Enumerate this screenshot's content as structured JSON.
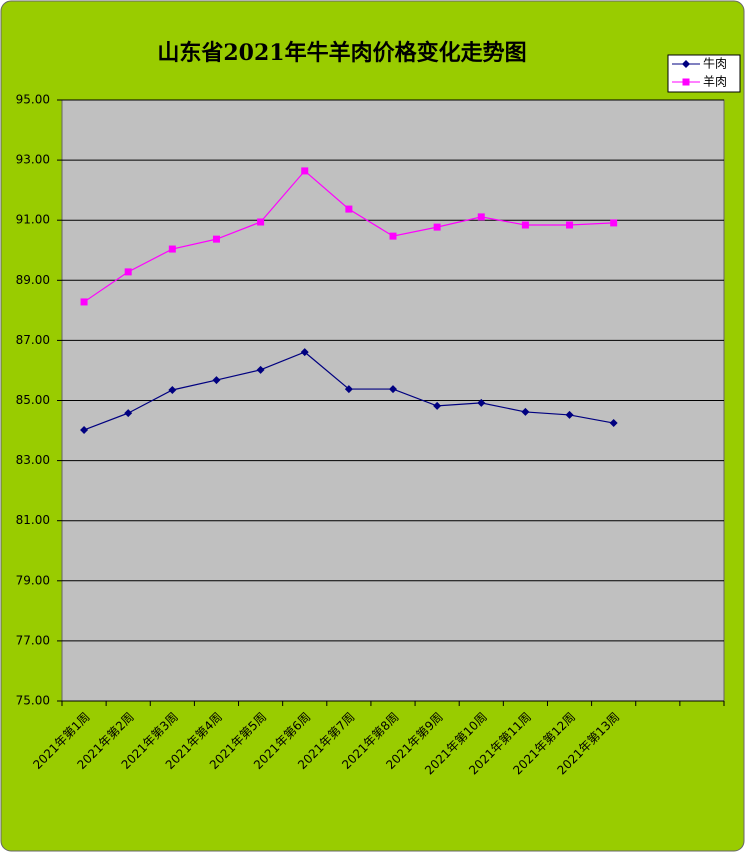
{
  "chart_data": {
    "type": "line",
    "title": "山东省2021年牛羊肉价格变化走势图",
    "categories": [
      "2021年第1周",
      "2021年第2周",
      "2021年第3周",
      "2021年第4周",
      "2021年第5周",
      "2021年第6周",
      "2021年第7周",
      "2021年第8周",
      "2021年第9周",
      "2021年第10周",
      "2021年第11周",
      "2021年第12周",
      "2021年第13周",
      null,
      null
    ],
    "series": [
      {
        "name": "牛肉",
        "color": "#000080",
        "marker": "diamond",
        "values": [
          84.02,
          84.58,
          85.35,
          85.68,
          86.02,
          86.61,
          85.38,
          85.38,
          84.82,
          84.92,
          84.62,
          84.52,
          84.25,
          null,
          null
        ]
      },
      {
        "name": "羊肉",
        "color": "#ff00ff",
        "marker": "square",
        "values": [
          88.28,
          89.28,
          90.04,
          90.37,
          90.94,
          92.64,
          91.37,
          90.47,
          90.77,
          91.11,
          90.84,
          90.84,
          90.91,
          null,
          null
        ]
      }
    ],
    "ylim": [
      75,
      95
    ],
    "yticks": [
      {
        "value": 75,
        "label": "75.00"
      },
      {
        "value": 77,
        "label": "77.00"
      },
      {
        "value": 79,
        "label": "79.00"
      },
      {
        "value": 81,
        "label": "81.00"
      },
      {
        "value": 83,
        "label": "83.00"
      },
      {
        "value": 85,
        "label": "85.00"
      },
      {
        "value": 87,
        "label": "87.00"
      },
      {
        "value": 89,
        "label": "89.00"
      },
      {
        "value": 91,
        "label": "91.00"
      },
      {
        "value": 93,
        "label": "93.00"
      },
      {
        "value": 95,
        "label": "95.00"
      }
    ],
    "grid": true,
    "legend": "top-right"
  }
}
